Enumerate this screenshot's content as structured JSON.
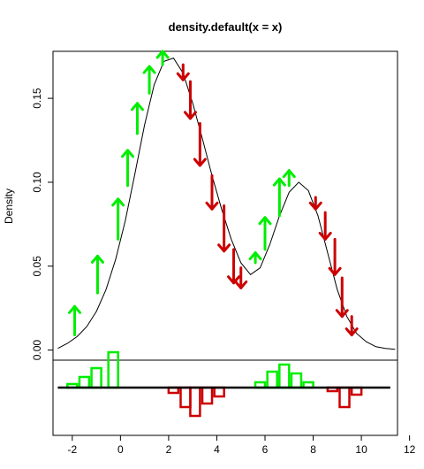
{
  "chart_data": {
    "type": "line",
    "title": "density.default(x = x)",
    "xlabel": "",
    "ylabel": "Density",
    "xlim": [
      -2.8,
      11.5
    ],
    "ylim": [
      -0.006,
      0.178
    ],
    "x_ticks": [
      -2,
      0,
      2,
      4,
      6,
      8,
      10,
      12
    ],
    "y_ticks": [
      0.0,
      0.05,
      0.1,
      0.15
    ],
    "y_tick_labels": [
      "0.00",
      "0.05",
      "0.10",
      "0.15"
    ],
    "density_curve": {
      "x": [
        -2.6,
        -2.2,
        -1.8,
        -1.4,
        -1.0,
        -0.6,
        -0.2,
        0.2,
        0.6,
        1.0,
        1.4,
        1.8,
        2.2,
        2.6,
        3.0,
        3.4,
        3.8,
        4.2,
        4.6,
        5.0,
        5.4,
        5.8,
        6.2,
        6.6,
        7.0,
        7.4,
        7.8,
        8.2,
        8.6,
        9.0,
        9.4,
        9.8,
        10.2,
        10.6,
        11.0,
        11.4
      ],
      "y": [
        0.001,
        0.004,
        0.008,
        0.014,
        0.023,
        0.036,
        0.054,
        0.077,
        0.105,
        0.134,
        0.158,
        0.172,
        0.174,
        0.165,
        0.147,
        0.126,
        0.104,
        0.084,
        0.066,
        0.052,
        0.045,
        0.049,
        0.063,
        0.08,
        0.094,
        0.1,
        0.095,
        0.08,
        0.058,
        0.036,
        0.02,
        0.01,
        0.005,
        0.002,
        0.001,
        0.0005
      ]
    },
    "arrows_up": {
      "color": "#00ee00",
      "items": [
        {
          "x": -1.9,
          "y0": 0.009,
          "y1": 0.026
        },
        {
          "x": -0.95,
          "y0": 0.034,
          "y1": 0.056
        },
        {
          "x": -0.1,
          "y0": 0.066,
          "y1": 0.09
        },
        {
          "x": 0.3,
          "y0": 0.098,
          "y1": 0.119
        },
        {
          "x": 0.7,
          "y0": 0.129,
          "y1": 0.147
        },
        {
          "x": 1.2,
          "y0": 0.153,
          "y1": 0.169
        },
        {
          "x": 1.75,
          "y0": 0.17,
          "y1": 0.178
        },
        {
          "x": 5.6,
          "y0": 0.052,
          "y1": 0.058
        },
        {
          "x": 6.0,
          "y0": 0.06,
          "y1": 0.079
        },
        {
          "x": 6.6,
          "y0": 0.08,
          "y1": 0.102
        },
        {
          "x": 7.0,
          "y0": 0.098,
          "y1": 0.107
        }
      ]
    },
    "arrows_down": {
      "color": "#cc0000",
      "items": [
        {
          "x": 2.6,
          "y0": 0.17,
          "y1": 0.161
        },
        {
          "x": 2.9,
          "y0": 0.16,
          "y1": 0.138
        },
        {
          "x": 3.3,
          "y0": 0.135,
          "y1": 0.11
        },
        {
          "x": 3.8,
          "y0": 0.104,
          "y1": 0.084
        },
        {
          "x": 4.3,
          "y0": 0.086,
          "y1": 0.059
        },
        {
          "x": 4.7,
          "y0": 0.06,
          "y1": 0.04
        },
        {
          "x": 5.0,
          "y0": 0.049,
          "y1": 0.037
        },
        {
          "x": 8.1,
          "y0": 0.091,
          "y1": 0.084
        },
        {
          "x": 8.5,
          "y0": 0.082,
          "y1": 0.066
        },
        {
          "x": 8.9,
          "y0": 0.066,
          "y1": 0.045
        },
        {
          "x": 9.2,
          "y0": 0.043,
          "y1": 0.02
        },
        {
          "x": 9.6,
          "y0": 0.02,
          "y1": 0.009
        }
      ]
    },
    "lower_panel": {
      "baseline_xlim": [
        -2.6,
        11.2
      ],
      "bars_positive": {
        "color": "#00ee00",
        "x": [
          -2.0,
          -1.5,
          -1.0,
          -0.3,
          5.8,
          6.3,
          6.8,
          7.3,
          7.8
        ],
        "height": [
          0.1,
          0.3,
          0.55,
          1.0,
          0.15,
          0.45,
          0.65,
          0.4,
          0.15
        ]
      },
      "bars_negative": {
        "color": "#cc0000",
        "x": [
          2.2,
          2.7,
          3.1,
          3.6,
          4.1,
          8.8,
          9.3,
          9.8
        ],
        "height": [
          0.15,
          0.55,
          0.8,
          0.45,
          0.25,
          0.1,
          0.55,
          0.2
        ]
      }
    }
  }
}
